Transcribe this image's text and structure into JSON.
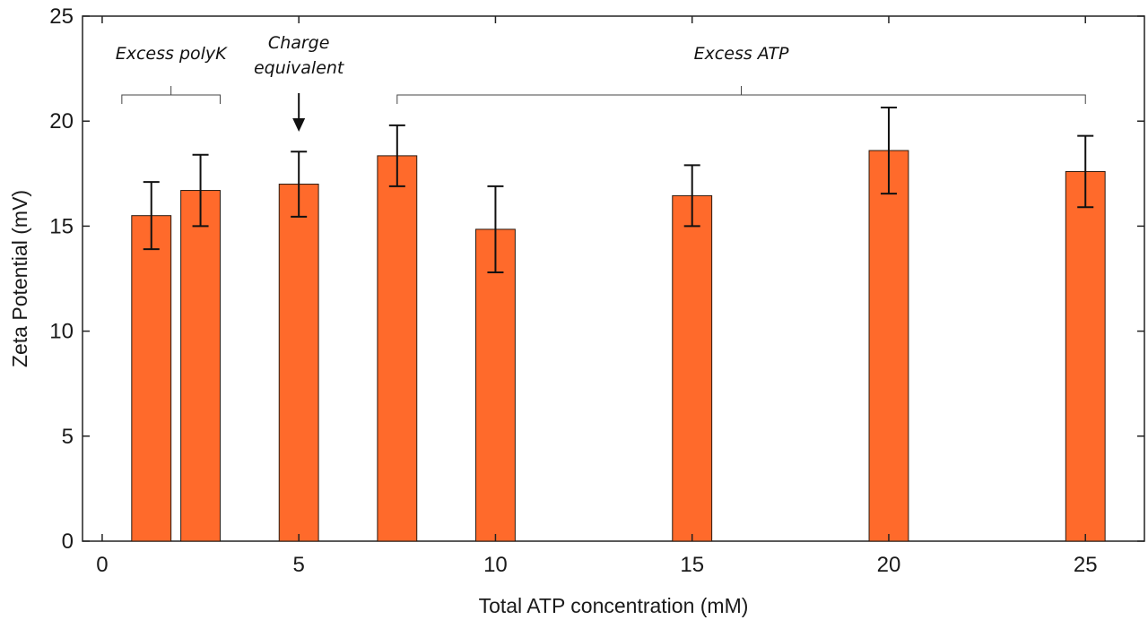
{
  "chart_data": {
    "type": "bar",
    "title": "",
    "xlabel": "Total ATP concentration (mM)",
    "ylabel": "Zeta Potential (mV)",
    "xlim": [
      -0.5,
      26.5
    ],
    "ylim": [
      0,
      25
    ],
    "xticks": [
      0,
      5,
      10,
      15,
      20,
      25
    ],
    "yticks": [
      0,
      5,
      10,
      15,
      20,
      25
    ],
    "bar_width": 1.0,
    "bar_color": "#ff6a2b",
    "series": [
      {
        "x": [
          1.25,
          2.5,
          5,
          7.5,
          10,
          15,
          20,
          25
        ],
        "values": [
          15.5,
          16.7,
          17.0,
          18.35,
          14.85,
          16.45,
          18.6,
          17.6
        ],
        "error": [
          1.6,
          1.7,
          1.55,
          1.45,
          2.05,
          1.45,
          2.05,
          1.7
        ]
      }
    ],
    "annotations": [
      {
        "text": "Excess polyK",
        "bracket": [
          0.5,
          3.0
        ]
      },
      {
        "text": "Charge equivalent",
        "lines": [
          "Charge",
          "equivalent"
        ],
        "arrow_x": 5
      },
      {
        "text": "Excess ATP",
        "bracket": [
          7.5,
          25
        ]
      }
    ],
    "grid": false,
    "box": true
  }
}
